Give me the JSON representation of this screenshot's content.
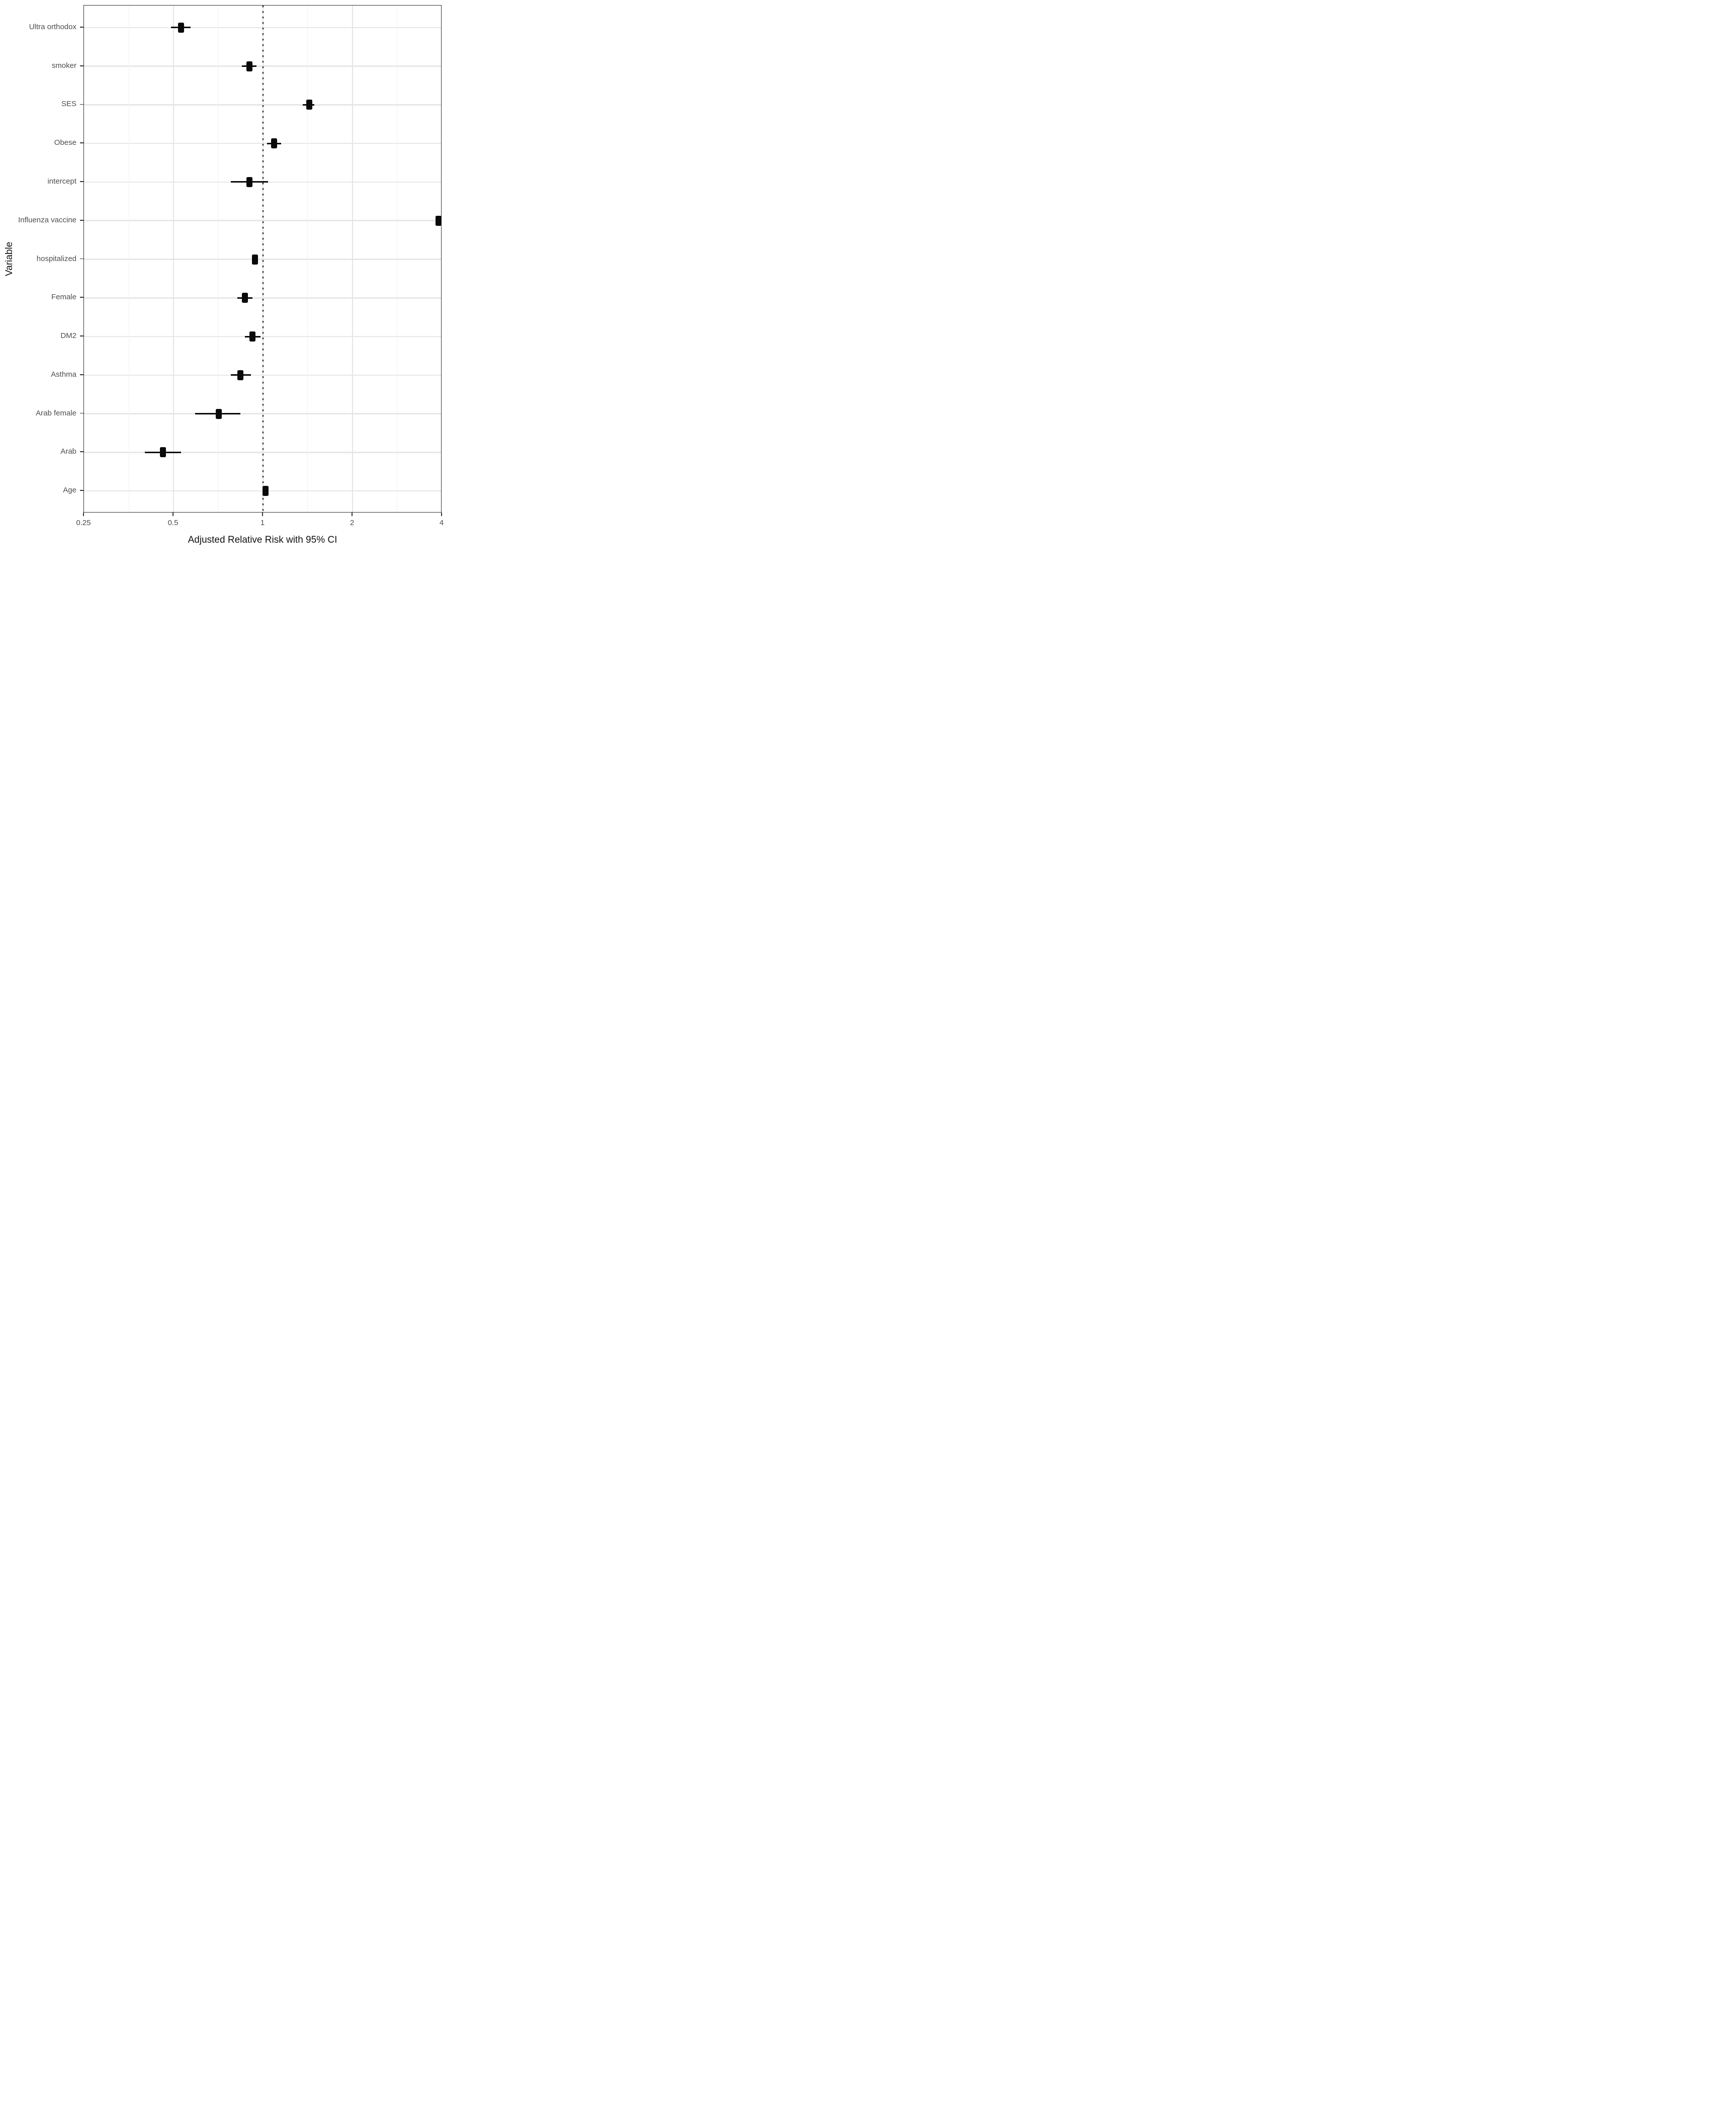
{
  "figure": {
    "background": "#ffffff",
    "panel_border_color": "#333333",
    "grid_major_color": "#e4e4e4",
    "grid_minor_color": "#f2f2f2",
    "marker_color": "#0a0a0a",
    "tick_label_color": "#4d4d4d",
    "axis_title_color": "#111111",
    "reference_line_color": "#0d0d0d"
  },
  "chart_data": {
    "type": "scatter",
    "subtype": "forest-plot-with-95pct-ci",
    "title": "",
    "xlabel": "Adjusted Relative Risk with 95% CI",
    "ylabel": "Variable",
    "x_scale": "log2",
    "xlim": [
      0.25,
      4
    ],
    "grid": "on",
    "legend": "none",
    "x_ticks": [
      {
        "label": "0.25",
        "value": 0.25
      },
      {
        "label": "0.5",
        "value": 0.5
      },
      {
        "label": "1",
        "value": 1
      },
      {
        "label": "2",
        "value": 2
      },
      {
        "label": "4",
        "value": 4
      }
    ],
    "x_major_gridlines": [
      0.5,
      1,
      2
    ],
    "x_minor_gridlines": [
      0.3536,
      0.7071,
      1.4142,
      2.8284
    ],
    "reference_line": {
      "x": 1,
      "style": "dotted"
    },
    "rows": [
      {
        "variable": "Ultra orthodox",
        "estimate": 0.53,
        "ci_low": 0.49,
        "ci_high": 0.57
      },
      {
        "variable": "smoker",
        "estimate": 0.9,
        "ci_low": 0.85,
        "ci_high": 0.95
      },
      {
        "variable": "SES",
        "estimate": 1.43,
        "ci_low": 1.36,
        "ci_high": 1.49
      },
      {
        "variable": "Obese",
        "estimate": 1.09,
        "ci_low": 1.03,
        "ci_high": 1.15
      },
      {
        "variable": "intercept",
        "estimate": 0.9,
        "ci_low": 0.78,
        "ci_high": 1.04
      },
      {
        "variable": "Influenza vaccine",
        "estimate": 3.89,
        "ci_low": 3.81,
        "ci_high": 3.97
      },
      {
        "variable": "hospitalized",
        "estimate": 0.94,
        "ci_low": 0.92,
        "ci_high": 0.96
      },
      {
        "variable": "Female",
        "estimate": 0.87,
        "ci_low": 0.82,
        "ci_high": 0.92
      },
      {
        "variable": "DM2",
        "estimate": 0.92,
        "ci_low": 0.87,
        "ci_high": 0.98
      },
      {
        "variable": "Asthma",
        "estimate": 0.84,
        "ci_low": 0.78,
        "ci_high": 0.91
      },
      {
        "variable": "Arab female",
        "estimate": 0.71,
        "ci_low": 0.59,
        "ci_high": 0.84
      },
      {
        "variable": "Arab",
        "estimate": 0.46,
        "ci_low": 0.4,
        "ci_high": 0.53
      },
      {
        "variable": "Age",
        "estimate": 1.02,
        "ci_low": 1.0,
        "ci_high": 1.04
      }
    ]
  }
}
